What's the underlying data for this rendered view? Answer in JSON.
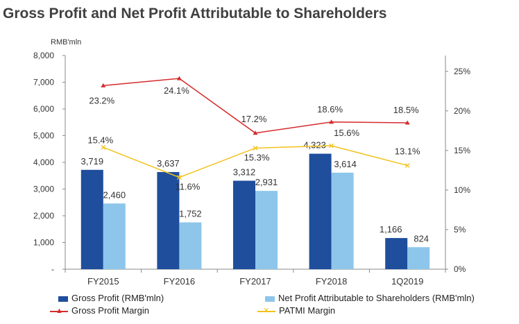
{
  "title": "Gross Profit and Net Profit Attributable to Shareholders",
  "colors": {
    "gross_bar": "#1f4e9c",
    "net_bar": "#8dc6ea",
    "gpm_line": "#d62b2b",
    "patmi_line": "#f2c21b",
    "axis": "#888888",
    "title": "#404040"
  },
  "chart_data": {
    "type": "bar+line",
    "title": "Gross Profit and Net Profit Attributable to Shareholders",
    "y_unit_label": "RMB'mln",
    "categories": [
      "FY2015",
      "FY2016",
      "FY2017",
      "FY2018",
      "1Q2019"
    ],
    "left_axis": {
      "ylim": [
        0,
        8000
      ],
      "ticks": [
        0,
        1000,
        2000,
        3000,
        4000,
        5000,
        6000,
        7000,
        8000
      ],
      "tick_labels": [
        "-",
        "1,000",
        "2,000",
        "3,000",
        "4,000",
        "5,000",
        "6,000",
        "7,000",
        "8,000"
      ]
    },
    "right_axis": {
      "ylim": [
        0,
        27
      ],
      "ticks": [
        0,
        5,
        10,
        15,
        20,
        25
      ],
      "tick_labels": [
        "0%",
        "5%",
        "10%",
        "15%",
        "20%",
        "25%"
      ]
    },
    "bar_series": [
      {
        "name": "Gross Profit (RMB'mln)",
        "values": [
          3719,
          3637,
          3312,
          4323,
          1166
        ],
        "labels": [
          "3,719",
          "3,637",
          "3,312",
          "4,323",
          "1,166"
        ]
      },
      {
        "name": "Net Profit Attributable to Shareholders (RMB'mln)",
        "values": [
          2460,
          1752,
          2931,
          3614,
          824
        ],
        "labels": [
          "2,460",
          "1,752",
          "2,931",
          "3,614",
          "824"
        ]
      }
    ],
    "line_series": [
      {
        "name": "Gross Profit Margin",
        "marker": "▲",
        "values": [
          23.2,
          24.1,
          17.2,
          18.6,
          18.5
        ],
        "labels": [
          "23.2%",
          "24.1%",
          "17.2%",
          "18.6%",
          "18.5%"
        ]
      },
      {
        "name": "PATMI Margin",
        "marker": "✕",
        "values": [
          15.4,
          11.6,
          15.3,
          15.6,
          13.1
        ],
        "labels": [
          "15.4%",
          "11.6%",
          "15.3%",
          "15.6%",
          "13.1%"
        ]
      }
    ],
    "legend_position": "bottom",
    "grid": false
  }
}
